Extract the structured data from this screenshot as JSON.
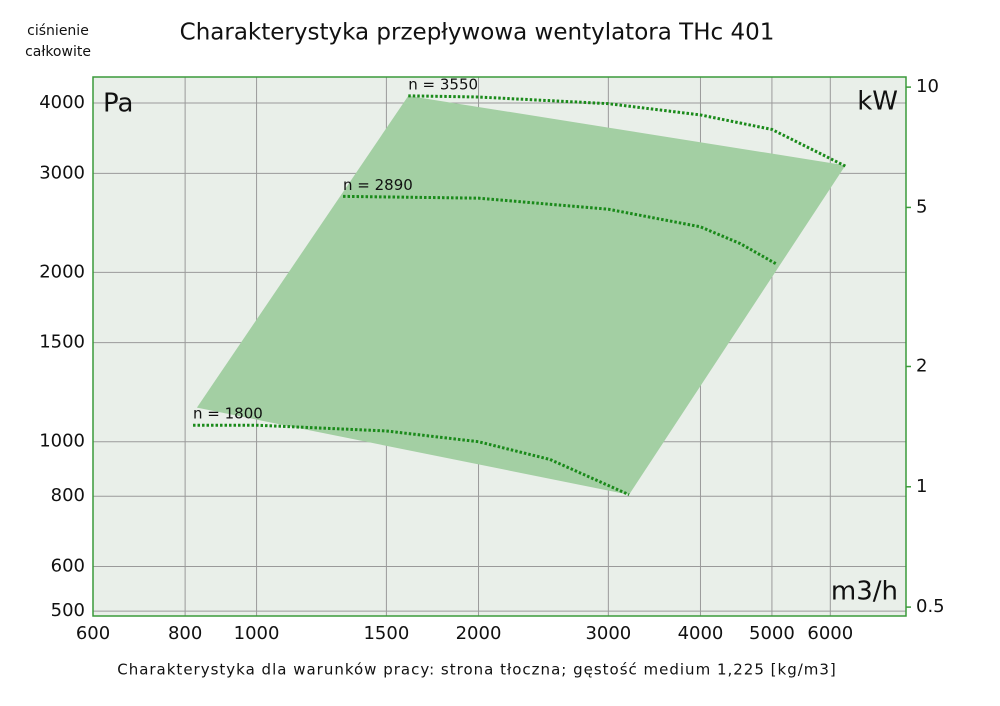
{
  "chart_data": {
    "type": "line",
    "title": "Charakterystyka przepływowa wentylatora THc 401",
    "ylabel_lines": [
      "ciśnienie",
      "całkowite"
    ],
    "y_unit": "Pa",
    "y2_unit": "kW",
    "x_unit": "m3/h",
    "note": "Charakterystyka dla warunków pracy: strona tłoczna; gęstość medium 1,225 [kg/m3]",
    "xscale": "log",
    "yscale": "log",
    "y2scale": "log",
    "grid": true,
    "xlim": [
      600,
      7600
    ],
    "xticks": [
      600,
      800,
      1000,
      1500,
      2000,
      3000,
      4000,
      5000,
      6000
    ],
    "ylim": [
      490,
      4450
    ],
    "yticks": [
      500,
      600,
      800,
      1000,
      1500,
      2000,
      3000,
      4000
    ],
    "y2lim": [
      0.475,
      10.6
    ],
    "y2ticks": [
      0.5,
      1,
      2,
      5,
      10
    ],
    "region": {
      "color": "#a3cfa3",
      "x": [
        830,
        1606,
        6290,
        3200
      ],
      "y": [
        1150,
        4120,
        3100,
        805
      ]
    },
    "series": [
      {
        "name": "n = 1800",
        "color": "#1a8a1a",
        "x": [
          820,
          1000,
          1500,
          2000,
          2500,
          3200
        ],
        "values": [
          1070,
          1070,
          1045,
          1000,
          930,
          805
        ]
      },
      {
        "name": "n = 2890",
        "color": "#1a8a1a",
        "x": [
          1310,
          2000,
          3000,
          4000,
          4530,
          5070
        ],
        "values": [
          2730,
          2710,
          2590,
          2410,
          2250,
          2070
        ]
      },
      {
        "name": "n = 3550",
        "color": "#1a8a1a",
        "x": [
          1606,
          2000,
          3000,
          4000,
          5000,
          6290
        ],
        "values": [
          4120,
          4100,
          3990,
          3810,
          3590,
          3090
        ]
      }
    ]
  }
}
